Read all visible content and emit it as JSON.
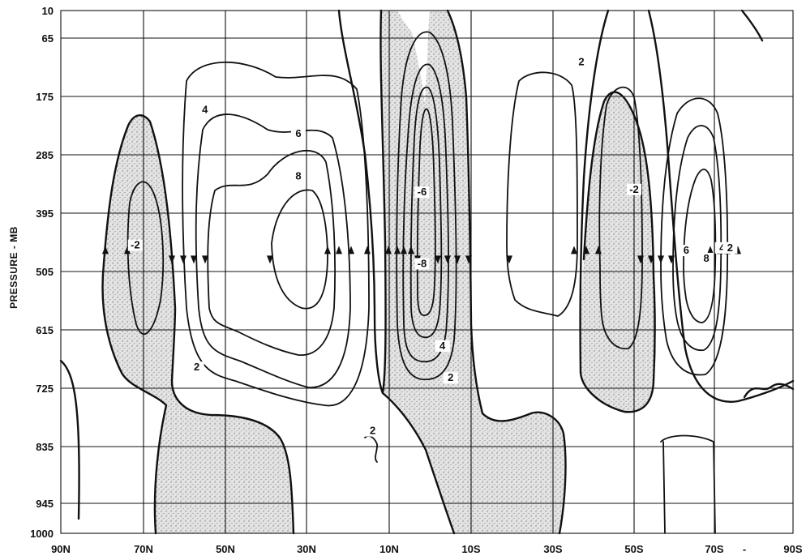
{
  "chart_data": {
    "type": "contour",
    "title": "",
    "xlabel": "",
    "ylabel": "PRESSURE - MB",
    "x_ticks": [
      "90N",
      "70N",
      "50N",
      "30N",
      "10N",
      "10S",
      "30S",
      "50S",
      "70S",
      "90S"
    ],
    "x_extra_mark": "-",
    "y_ticks": [
      10,
      65,
      175,
      285,
      395,
      505,
      615,
      725,
      835,
      945,
      1000
    ],
    "ylim": [
      10,
      1000
    ],
    "xlim": [
      "90N",
      "90S"
    ],
    "grid": true,
    "shading": "stippled regions of negative circulation",
    "contour_labels": [
      {
        "text": "-2",
        "lat": 72,
        "p": 460
      },
      {
        "text": "4",
        "lat": 55,
        "p": 205
      },
      {
        "text": "6",
        "lat": 32,
        "p": 250
      },
      {
        "text": "8",
        "lat": 32,
        "p": 330
      },
      {
        "text": "2",
        "lat": 57,
        "p": 690
      },
      {
        "text": "-6",
        "lat": 2,
        "p": 360
      },
      {
        "text": "-8",
        "lat": 2,
        "p": 495
      },
      {
        "text": "4",
        "lat": -3,
        "p": 650
      },
      {
        "text": "2",
        "lat": -5,
        "p": 710
      },
      {
        "text": "2",
        "lat": 14,
        "p": 810
      },
      {
        "text": "2",
        "lat": -37,
        "p": 115
      },
      {
        "text": "-2",
        "lat": -50,
        "p": 355
      },
      {
        "text": "6",
        "lat": -63,
        "p": 470
      },
      {
        "text": "8",
        "lat": -68,
        "p": 485
      },
      {
        "text": "4",
        "lat": -72,
        "p": 465
      },
      {
        "text": "2",
        "lat": -74,
        "p": 465
      }
    ]
  }
}
